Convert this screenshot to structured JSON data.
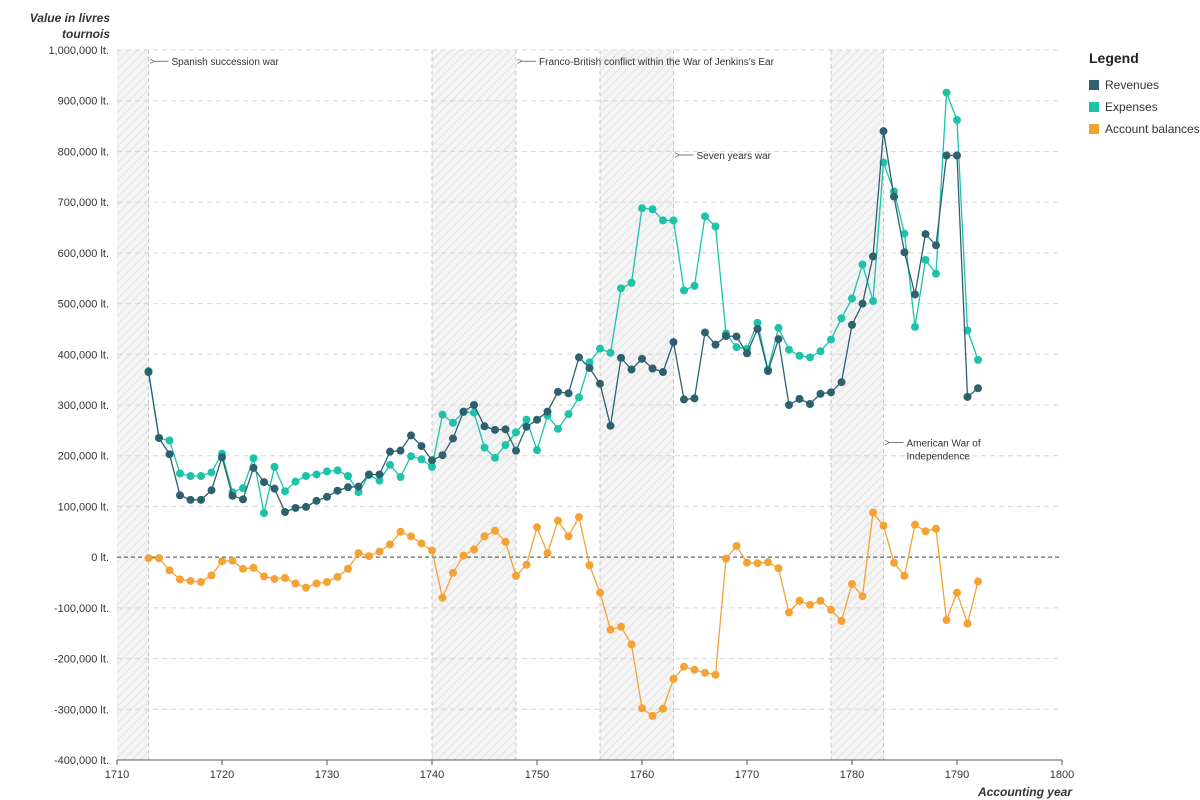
{
  "chart_data": {
    "type": "line",
    "ylabel": "Value in livres tournois",
    "xlabel": "Accounting year",
    "xlim": [
      1710,
      1800
    ],
    "ylim": [
      -400000,
      1000000
    ],
    "x_ticks": [
      1710,
      1720,
      1730,
      1740,
      1750,
      1760,
      1770,
      1780,
      1790,
      1800
    ],
    "y_ticks": [
      {
        "value": 1000000,
        "label": "1,000,000 lt."
      },
      {
        "value": 900000,
        "label": "900,000 lt."
      },
      {
        "value": 800000,
        "label": "800,000 lt."
      },
      {
        "value": 700000,
        "label": "700,000 lt."
      },
      {
        "value": 600000,
        "label": "600,000 lt."
      },
      {
        "value": 500000,
        "label": "500,000 lt."
      },
      {
        "value": 400000,
        "label": "400,000 lt."
      },
      {
        "value": 300000,
        "label": "300,000 lt."
      },
      {
        "value": 200000,
        "label": "200,000 lt."
      },
      {
        "value": 100000,
        "label": "100,000 lt."
      },
      {
        "value": 0,
        "label": "0 lt."
      },
      {
        "value": -100000,
        "label": "-100,000 lt."
      },
      {
        "value": -200000,
        "label": "-200,000 lt."
      },
      {
        "value": -300000,
        "label": "-300,000 lt."
      },
      {
        "value": -400000,
        "label": "-400,000 lt."
      }
    ],
    "grid": true,
    "legend": {
      "title": "Legend",
      "placement": "right",
      "items": [
        {
          "label": "Revenues",
          "color": "#2e6070"
        },
        {
          "label": "Expenses",
          "color": "#1cc3a8"
        },
        {
          "label": "Account balances",
          "color": "#f5a234"
        }
      ]
    },
    "wars": [
      {
        "label": "Spanish succession war",
        "start": 1710,
        "end": 1713,
        "label_year": 1713,
        "label_value": 970000
      },
      {
        "label": "Franco-British conflict within the War of Jenkins's Ear",
        "start": 1740,
        "end": 1748,
        "label_year": 1748,
        "label_value": 970000
      },
      {
        "label": "Seven years war",
        "start": 1756,
        "end": 1763,
        "label_year": 1763,
        "label_value": 785000
      },
      {
        "label": "American War of Independence",
        "start": 1778,
        "end": 1783,
        "label_year": 1783,
        "label_value": 218000
      }
    ],
    "series": [
      {
        "name": "Revenues",
        "color": "#2e6070",
        "x": [
          1713,
          1714,
          1715,
          1716,
          1717,
          1718,
          1719,
          1720,
          1721,
          1722,
          1723,
          1724,
          1725,
          1726,
          1727,
          1728,
          1729,
          1730,
          1731,
          1732,
          1733,
          1734,
          1735,
          1736,
          1737,
          1738,
          1739,
          1740,
          1741,
          1742,
          1743,
          1744,
          1745,
          1746,
          1747,
          1748,
          1749,
          1750,
          1751,
          1752,
          1753,
          1754,
          1755,
          1756,
          1757,
          1758,
          1759,
          1760,
          1761,
          1762,
          1763,
          1764,
          1765,
          1766,
          1767,
          1768,
          1769,
          1770,
          1771,
          1772,
          1773,
          1774,
          1775,
          1776,
          1777,
          1778,
          1779,
          1780,
          1781,
          1782,
          1783,
          1784,
          1785,
          1786,
          1787,
          1788,
          1789,
          1790,
          1791,
          1792
        ],
        "values": [
          365000,
          235000,
          203000,
          122000,
          113000,
          113000,
          132000,
          197000,
          121000,
          114000,
          176000,
          148000,
          135000,
          89000,
          97000,
          99000,
          111000,
          119000,
          131000,
          138000,
          139000,
          163000,
          163000,
          208000,
          210000,
          240000,
          219000,
          191000,
          201000,
          234000,
          287000,
          300000,
          258000,
          251000,
          252000,
          210000,
          257000,
          271000,
          287000,
          326000,
          323000,
          394000,
          373000,
          342000,
          259000,
          393000,
          370000,
          391000,
          372000,
          365000,
          424000,
          311000,
          313000,
          443000,
          419000,
          436000,
          435000,
          402000,
          450000,
          367000,
          430000,
          300000,
          312000,
          302000,
          322000,
          325000,
          345000,
          458000,
          500000,
          593000,
          840000,
          711000,
          601000,
          518000,
          637000,
          615000,
          792000,
          792000,
          316000,
          333000
        ]
      },
      {
        "name": "Expenses",
        "color": "#1cc3a8",
        "x": [
          1713,
          1714,
          1715,
          1716,
          1717,
          1718,
          1719,
          1720,
          1721,
          1722,
          1723,
          1724,
          1725,
          1726,
          1727,
          1728,
          1729,
          1730,
          1731,
          1732,
          1733,
          1734,
          1735,
          1736,
          1737,
          1738,
          1739,
          1740,
          1741,
          1742,
          1743,
          1744,
          1745,
          1746,
          1747,
          1748,
          1749,
          1750,
          1751,
          1752,
          1753,
          1754,
          1755,
          1756,
          1757,
          1758,
          1759,
          1760,
          1761,
          1762,
          1763,
          1764,
          1765,
          1766,
          1767,
          1768,
          1769,
          1770,
          1771,
          1772,
          1773,
          1774,
          1775,
          1776,
          1777,
          1778,
          1779,
          1780,
          1781,
          1782,
          1783,
          1784,
          1785,
          1786,
          1787,
          1788,
          1789,
          1790,
          1791,
          1792
        ],
        "values": [
          367000,
          235000,
          230000,
          165000,
          160000,
          160000,
          167000,
          204000,
          128000,
          136000,
          195000,
          87000,
          178000,
          130000,
          149000,
          160000,
          163000,
          169000,
          171000,
          160000,
          128000,
          162000,
          151000,
          182000,
          158000,
          199000,
          193000,
          178000,
          281000,
          265000,
          286000,
          285000,
          216000,
          196000,
          221000,
          246000,
          271000,
          211000,
          279000,
          253000,
          282000,
          315000,
          384000,
          411000,
          403000,
          530000,
          541000,
          688000,
          686000,
          664000,
          664000,
          526000,
          535000,
          672000,
          652000,
          441000,
          414000,
          411000,
          462000,
          370000,
          452000,
          409000,
          397000,
          394000,
          406000,
          429000,
          471000,
          510000,
          577000,
          505000,
          778000,
          721000,
          638000,
          454000,
          586000,
          559000,
          916000,
          862000,
          447000,
          389000
        ]
      },
      {
        "name": "Account balances",
        "color": "#f5a234",
        "x": [
          1713,
          1714,
          1715,
          1716,
          1717,
          1718,
          1719,
          1720,
          1721,
          1722,
          1723,
          1724,
          1725,
          1726,
          1727,
          1728,
          1729,
          1730,
          1731,
          1732,
          1733,
          1734,
          1735,
          1736,
          1737,
          1738,
          1739,
          1740,
          1741,
          1742,
          1743,
          1744,
          1745,
          1746,
          1747,
          1748,
          1749,
          1750,
          1751,
          1752,
          1753,
          1754,
          1755,
          1756,
          1757,
          1758,
          1759,
          1760,
          1761,
          1762,
          1763,
          1764,
          1765,
          1766,
          1767,
          1768,
          1769,
          1770,
          1771,
          1772,
          1773,
          1774,
          1775,
          1776,
          1777,
          1778,
          1779,
          1780,
          1781,
          1782,
          1783,
          1784,
          1785,
          1786,
          1787,
          1788,
          1789,
          1790,
          1791,
          1792
        ],
        "values": [
          -2000,
          -2000,
          -26000,
          -44000,
          -47000,
          -49000,
          -36000,
          -8000,
          -7000,
          -23000,
          -21000,
          -38000,
          -43000,
          -41000,
          -52000,
          -60000,
          -52000,
          -49000,
          -39000,
          -23000,
          8000,
          2000,
          11000,
          25000,
          50000,
          41000,
          27000,
          13000,
          -80000,
          -31000,
          3000,
          15000,
          41000,
          52000,
          30000,
          -37000,
          -15000,
          59000,
          8000,
          72000,
          41000,
          79000,
          -16000,
          -70000,
          -143000,
          -137000,
          -172000,
          -298000,
          -313000,
          -299000,
          -240000,
          -216000,
          -222000,
          -228000,
          -232000,
          -3000,
          22000,
          -11000,
          -12000,
          -10000,
          -22000,
          -109000,
          -86000,
          -94000,
          -86000,
          -104000,
          -126000,
          -53000,
          -77000,
          88000,
          62000,
          -11000,
          -37000,
          64000,
          51000,
          56000,
          -124000,
          -70000,
          -131000,
          -48000
        ]
      }
    ]
  }
}
